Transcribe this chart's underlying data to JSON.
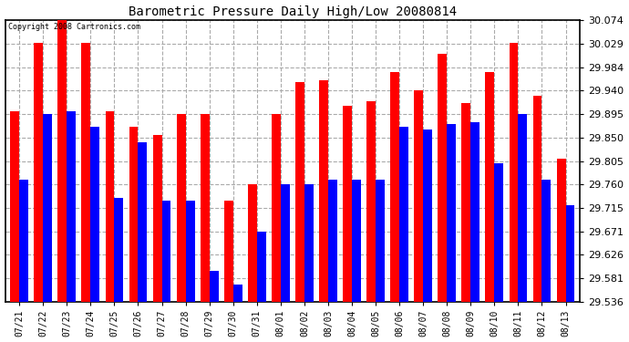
{
  "title": "Barometric Pressure Daily High/Low 20080814",
  "copyright": "Copyright 2008 Cartronics.com",
  "dates": [
    "07/21",
    "07/22",
    "07/23",
    "07/24",
    "07/25",
    "07/26",
    "07/27",
    "07/28",
    "07/29",
    "07/30",
    "07/31",
    "08/01",
    "08/02",
    "08/03",
    "08/04",
    "08/05",
    "08/06",
    "08/07",
    "08/08",
    "08/09",
    "08/10",
    "08/11",
    "08/12",
    "08/13"
  ],
  "highs": [
    29.9,
    30.03,
    30.074,
    30.03,
    29.9,
    29.87,
    29.855,
    29.895,
    29.895,
    29.73,
    29.76,
    29.895,
    29.955,
    29.96,
    29.91,
    29.92,
    29.975,
    29.94,
    30.01,
    29.915,
    29.975,
    30.03,
    29.93,
    29.81
  ],
  "lows": [
    29.77,
    29.895,
    29.9,
    29.87,
    29.735,
    29.84,
    29.73,
    29.73,
    29.595,
    29.57,
    29.67,
    29.76,
    29.76,
    29.77,
    29.77,
    29.77,
    29.87,
    29.865,
    29.875,
    29.88,
    29.8,
    29.895,
    29.77,
    29.72
  ],
  "high_color": "#FF0000",
  "low_color": "#0000FF",
  "bg_color": "#FFFFFF",
  "plot_bg_color": "#FFFFFF",
  "grid_color": "#AAAAAA",
  "yticks": [
    29.536,
    29.581,
    29.626,
    29.671,
    29.715,
    29.76,
    29.805,
    29.85,
    29.895,
    29.94,
    29.984,
    30.029,
    30.074
  ],
  "ymin": 29.536,
  "ymax": 30.074,
  "bar_width": 0.38
}
